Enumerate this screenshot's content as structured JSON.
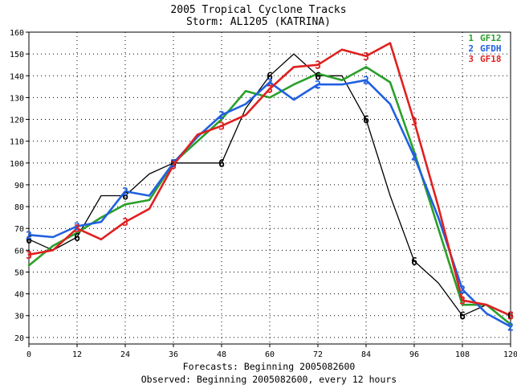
{
  "chart_data": {
    "type": "line",
    "title": "2005 Tropical Cyclone Tracks",
    "subtitle": "Storm: AL1205 (KATRINA)",
    "xlabel": "Forecasts: Beginning 2005082600",
    "xlabel2": "Observed: Beginning 2005082600, every 12 hours",
    "ylabel": "",
    "xlim": [
      0,
      120
    ],
    "ylim": [
      17,
      160
    ],
    "x_ticks": [
      0,
      12,
      24,
      36,
      48,
      60,
      72,
      84,
      96,
      108,
      120
    ],
    "y_ticks": [
      20,
      30,
      40,
      50,
      60,
      70,
      80,
      90,
      100,
      110,
      120,
      130,
      140,
      150,
      160
    ],
    "grid": true,
    "legend_position": "top-right",
    "series": [
      {
        "name": "Observed",
        "symbol": "6",
        "color": "#000000",
        "in_legend": false,
        "points": [
          [
            0,
            65
          ],
          [
            6,
            60
          ],
          [
            12,
            66
          ],
          [
            18,
            85
          ],
          [
            24,
            85
          ],
          [
            30,
            95
          ],
          [
            36,
            100
          ],
          [
            42,
            100
          ],
          [
            48,
            100
          ],
          [
            54,
            125
          ],
          [
            60,
            140
          ],
          [
            66,
            150
          ],
          [
            72,
            140
          ],
          [
            78,
            140
          ],
          [
            84,
            120
          ],
          [
            90,
            85
          ],
          [
            96,
            55
          ],
          [
            102,
            45
          ],
          [
            108,
            30
          ],
          [
            114,
            35
          ],
          [
            120,
            30
          ]
        ],
        "marker_x": [
          0,
          12,
          24,
          36,
          48,
          60,
          72,
          84,
          96,
          108,
          120
        ]
      },
      {
        "name": "GF12",
        "symbol": "1",
        "color": "#2aa02a",
        "in_legend": true,
        "points": [
          [
            0,
            53
          ],
          [
            6,
            62
          ],
          [
            12,
            68
          ],
          [
            18,
            75
          ],
          [
            24,
            81
          ],
          [
            30,
            83
          ],
          [
            36,
            100
          ],
          [
            42,
            110
          ],
          [
            48,
            120
          ],
          [
            54,
            133
          ],
          [
            60,
            130
          ],
          [
            66,
            136
          ],
          [
            72,
            141
          ],
          [
            78,
            138
          ],
          [
            84,
            144
          ],
          [
            90,
            137
          ],
          [
            96,
            105
          ],
          [
            102,
            70
          ],
          [
            108,
            35
          ],
          [
            114,
            35
          ],
          [
            120,
            26
          ]
        ],
        "marker_x": []
      },
      {
        "name": "GFDH",
        "symbol": "2",
        "color": "#2060e0",
        "in_legend": true,
        "points": [
          [
            0,
            67
          ],
          [
            6,
            66
          ],
          [
            12,
            71
          ],
          [
            18,
            73
          ],
          [
            24,
            87
          ],
          [
            30,
            85
          ],
          [
            36,
            100
          ],
          [
            42,
            112
          ],
          [
            48,
            122
          ],
          [
            54,
            127
          ],
          [
            60,
            137
          ],
          [
            66,
            129
          ],
          [
            72,
            136
          ],
          [
            78,
            136
          ],
          [
            84,
            138
          ],
          [
            90,
            127
          ],
          [
            96,
            103
          ],
          [
            102,
            75
          ],
          [
            108,
            42
          ],
          [
            114,
            31
          ],
          [
            120,
            25
          ]
        ],
        "marker_x": [
          0,
          12,
          24,
          36,
          48,
          60,
          72,
          84,
          96,
          108,
          120
        ]
      },
      {
        "name": "GF18",
        "symbol": "3",
        "color": "#e02020",
        "in_legend": true,
        "points": [
          [
            0,
            58
          ],
          [
            6,
            60
          ],
          [
            12,
            70
          ],
          [
            18,
            65
          ],
          [
            24,
            73
          ],
          [
            30,
            79
          ],
          [
            36,
            99
          ],
          [
            42,
            113
          ],
          [
            48,
            117
          ],
          [
            54,
            122
          ],
          [
            60,
            134
          ],
          [
            66,
            144
          ],
          [
            72,
            145
          ],
          [
            78,
            152
          ],
          [
            84,
            149
          ],
          [
            90,
            155
          ],
          [
            96,
            119
          ],
          [
            102,
            80
          ],
          [
            108,
            37
          ],
          [
            114,
            35
          ],
          [
            120,
            30
          ]
        ],
        "marker_x": [
          0,
          12,
          24,
          36,
          48,
          60,
          72,
          84,
          96,
          108,
          120
        ]
      }
    ]
  }
}
